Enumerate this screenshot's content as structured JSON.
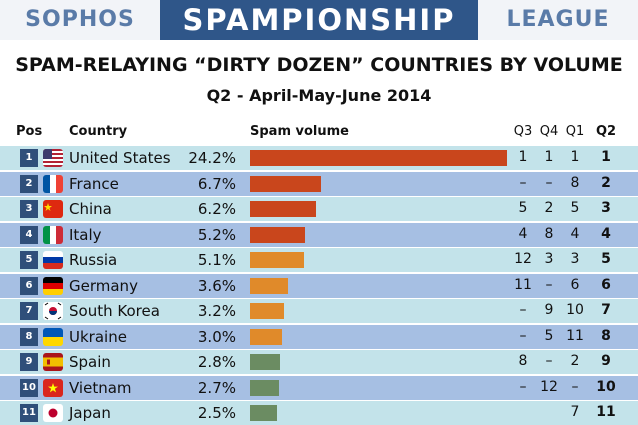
{
  "banner": {
    "left": "SOPHOS",
    "center": "SPAMPIONSHIP",
    "right": "LEAGUE"
  },
  "colors": {
    "banner_blue": "#2f5689",
    "row_light": "#c3e3ea",
    "row_dark": "#a6bfe3",
    "bar_red": "#c9461c",
    "bar_orange": "#e08a2a",
    "bar_green": "#6b8c62"
  },
  "chart_data": {
    "type": "table",
    "title": "SPAM-RELAYING “DIRTY DOZEN” COUNTRIES BY VOLUME",
    "subtitle": "Q2 - April-May-June 2014",
    "columns": {
      "pos": "Pos",
      "country": "Country",
      "volume": "Spam volume",
      "q3": "Q3",
      "q4": "Q4",
      "q1": "Q1",
      "q2": "Q2"
    },
    "rows": [
      {
        "pos": "1",
        "country": "United States",
        "flag": "us-flag",
        "percent": "24.2%",
        "value": 24.2,
        "q3": "1",
        "q4": "1",
        "q1": "1",
        "q2": "1"
      },
      {
        "pos": "2",
        "country": "France",
        "flag": "fr-flag",
        "percent": "6.7%",
        "value": 6.7,
        "q3": "–",
        "q4": "–",
        "q1": "8",
        "q2": "2"
      },
      {
        "pos": "3",
        "country": "China",
        "flag": "cn-flag",
        "percent": "6.2%",
        "value": 6.2,
        "q3": "5",
        "q4": "2",
        "q1": "5",
        "q2": "3"
      },
      {
        "pos": "4",
        "country": "Italy",
        "flag": "it-flag",
        "percent": "5.2%",
        "value": 5.2,
        "q3": "4",
        "q4": "8",
        "q1": "4",
        "q2": "4"
      },
      {
        "pos": "5",
        "country": "Russia",
        "flag": "ru-flag",
        "percent": "5.1%",
        "value": 5.1,
        "q3": "12",
        "q4": "3",
        "q1": "3",
        "q2": "5"
      },
      {
        "pos": "6",
        "country": "Germany",
        "flag": "de-flag",
        "percent": "3.6%",
        "value": 3.6,
        "q3": "11",
        "q4": "–",
        "q1": "6",
        "q2": "6"
      },
      {
        "pos": "7",
        "country": "South Korea",
        "flag": "kr-flag",
        "percent": "3.2%",
        "value": 3.2,
        "q3": "–",
        "q4": "9",
        "q1": "10",
        "q2": "7"
      },
      {
        "pos": "8",
        "country": "Ukraine",
        "flag": "ua-flag",
        "percent": "3.0%",
        "value": 3.0,
        "q3": "–",
        "q4": "5",
        "q1": "11",
        "q2": "8"
      },
      {
        "pos": "9",
        "country": "Spain",
        "flag": "es-flag",
        "percent": "2.8%",
        "value": 2.8,
        "q3": "8",
        "q4": "–",
        "q1": "2",
        "q2": "9"
      },
      {
        "pos": "10",
        "country": "Vietnam",
        "flag": "vn-flag",
        "percent": "2.7%",
        "value": 2.7,
        "q3": "–",
        "q4": "12",
        "q1": "–",
        "q2": "10"
      },
      {
        "pos": "11",
        "country": "Japan",
        "flag": "jp-flag",
        "percent": "2.5%",
        "value": 2.5,
        "q3": "",
        "q4": "",
        "q1": "7",
        "q2": "11"
      }
    ]
  }
}
